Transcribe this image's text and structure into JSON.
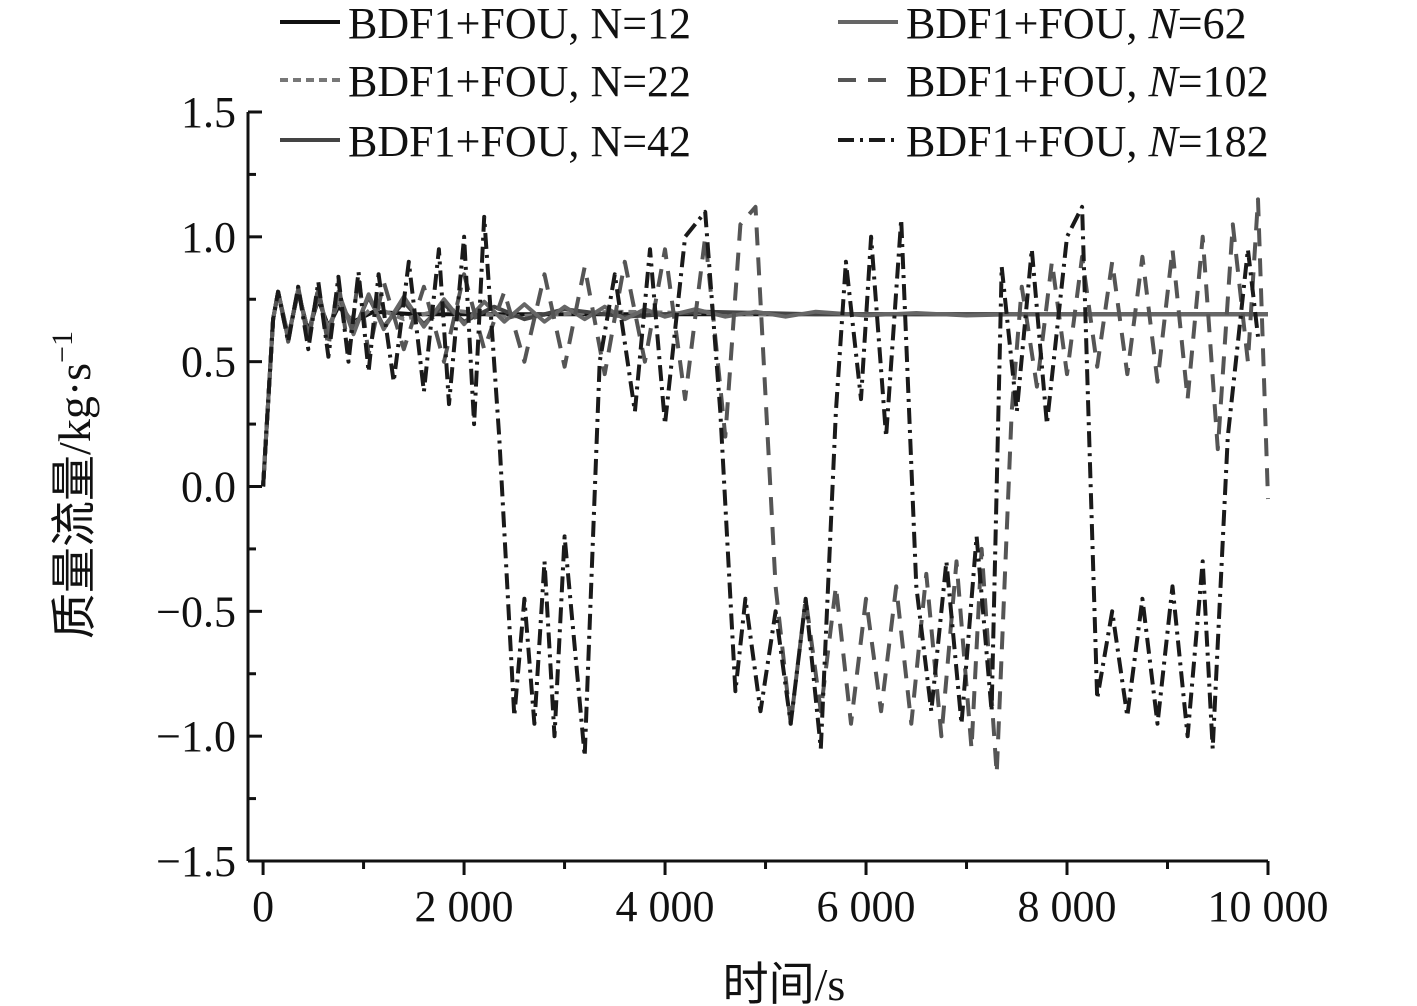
{
  "chart_data": {
    "type": "line",
    "xlabel": "时间/s",
    "ylabel_main": "质量流量/kg·s",
    "ylabel_sup": "−1",
    "xlim": [
      -150,
      10000
    ],
    "ylim": [
      -1.5,
      1.5
    ],
    "x_ticks": [
      {
        "value": 0,
        "label": "0"
      },
      {
        "value": 2000,
        "label": "2 000"
      },
      {
        "value": 4000,
        "label": "4 000"
      },
      {
        "value": 6000,
        "label": "6 000"
      },
      {
        "value": 8000,
        "label": "8 000"
      },
      {
        "value": 10000,
        "label": "10 000"
      }
    ],
    "y_ticks": [
      {
        "value": 1.5,
        "label": "1.5"
      },
      {
        "value": 1.0,
        "label": "1.0"
      },
      {
        "value": 0.5,
        "label": "0.5"
      },
      {
        "value": 0.0,
        "label": "0.0"
      },
      {
        "value": -0.5,
        "label": "−0.5"
      },
      {
        "value": -1.0,
        "label": "−1.0"
      },
      {
        "value": -1.5,
        "label": "−1.5"
      }
    ],
    "legend_position": "top",
    "series": [
      {
        "name_prefix": "BDF1+FOU, ",
        "name_var": "N",
        "name_suffix": "=12",
        "var_italic": false,
        "color": "#111111",
        "dash": "",
        "points": [
          [
            0,
            0
          ],
          [
            100,
            0.67
          ],
          [
            150,
            0.78
          ],
          [
            250,
            0.6
          ],
          [
            350,
            0.78
          ],
          [
            450,
            0.62
          ],
          [
            550,
            0.75
          ],
          [
            650,
            0.64
          ],
          [
            750,
            0.72
          ],
          [
            900,
            0.66
          ],
          [
            1100,
            0.7
          ],
          [
            1500,
            0.69
          ],
          [
            3000,
            0.69
          ],
          [
            10000,
            0.69
          ]
        ]
      },
      {
        "name_prefix": "BDF1+FOU, ",
        "name_var": "N",
        "name_suffix": "=22",
        "var_italic": false,
        "color": "#777777",
        "dash": "8,5",
        "points": [
          [
            0,
            0
          ],
          [
            100,
            0.67
          ],
          [
            150,
            0.78
          ],
          [
            250,
            0.6
          ],
          [
            350,
            0.78
          ],
          [
            450,
            0.62
          ],
          [
            550,
            0.76
          ],
          [
            650,
            0.63
          ],
          [
            750,
            0.74
          ],
          [
            900,
            0.65
          ],
          [
            1100,
            0.72
          ],
          [
            1400,
            0.67
          ],
          [
            1800,
            0.71
          ],
          [
            2400,
            0.68
          ],
          [
            3500,
            0.7
          ],
          [
            5000,
            0.69
          ],
          [
            10000,
            0.69
          ]
        ]
      },
      {
        "name_prefix": "BDF1+FOU, ",
        "name_var": "N",
        "name_suffix": "=42",
        "var_italic": false,
        "color": "#444444",
        "dash": "",
        "points": [
          [
            0,
            0
          ],
          [
            100,
            0.67
          ],
          [
            150,
            0.78
          ],
          [
            250,
            0.59
          ],
          [
            350,
            0.79
          ],
          [
            450,
            0.6
          ],
          [
            550,
            0.78
          ],
          [
            650,
            0.6
          ],
          [
            750,
            0.77
          ],
          [
            900,
            0.62
          ],
          [
            1050,
            0.76
          ],
          [
            1200,
            0.64
          ],
          [
            1400,
            0.74
          ],
          [
            1600,
            0.65
          ],
          [
            1800,
            0.73
          ],
          [
            2000,
            0.66
          ],
          [
            2300,
            0.72
          ],
          [
            2600,
            0.67
          ],
          [
            3000,
            0.71
          ],
          [
            3600,
            0.68
          ],
          [
            4400,
            0.7
          ],
          [
            5500,
            0.69
          ],
          [
            10000,
            0.69
          ]
        ]
      },
      {
        "name_prefix": "BDF1+FOU, ",
        "name_var": "N",
        "name_suffix": "=62",
        "var_italic": true,
        "color": "#666666",
        "dash": "",
        "points": [
          [
            0,
            0
          ],
          [
            100,
            0.67
          ],
          [
            150,
            0.78
          ],
          [
            250,
            0.59
          ],
          [
            350,
            0.79
          ],
          [
            450,
            0.6
          ],
          [
            550,
            0.79
          ],
          [
            650,
            0.6
          ],
          [
            750,
            0.78
          ],
          [
            900,
            0.61
          ],
          [
            1050,
            0.77
          ],
          [
            1200,
            0.63
          ],
          [
            1400,
            0.76
          ],
          [
            1600,
            0.64
          ],
          [
            1800,
            0.75
          ],
          [
            2000,
            0.65
          ],
          [
            2200,
            0.74
          ],
          [
            2400,
            0.66
          ],
          [
            2600,
            0.73
          ],
          [
            2800,
            0.66
          ],
          [
            3000,
            0.72
          ],
          [
            3200,
            0.67
          ],
          [
            3400,
            0.72
          ],
          [
            3600,
            0.67
          ],
          [
            3800,
            0.71
          ],
          [
            4000,
            0.68
          ],
          [
            4300,
            0.71
          ],
          [
            4600,
            0.68
          ],
          [
            4900,
            0.7
          ],
          [
            5200,
            0.68
          ],
          [
            5500,
            0.7
          ],
          [
            6000,
            0.685
          ],
          [
            6500,
            0.695
          ],
          [
            7000,
            0.685
          ],
          [
            7500,
            0.69
          ],
          [
            10000,
            0.69
          ]
        ]
      },
      {
        "name_prefix": "BDF1+FOU, ",
        "name_var": "N",
        "name_suffix": "=102",
        "var_italic": true,
        "color": "#555555",
        "dash": "18,12",
        "points": [
          [
            0,
            0
          ],
          [
            100,
            0.67
          ],
          [
            150,
            0.78
          ],
          [
            250,
            0.58
          ],
          [
            350,
            0.8
          ],
          [
            450,
            0.58
          ],
          [
            550,
            0.8
          ],
          [
            650,
            0.56
          ],
          [
            750,
            0.82
          ],
          [
            850,
            0.54
          ],
          [
            950,
            0.84
          ],
          [
            1050,
            0.53
          ],
          [
            1200,
            0.82
          ],
          [
            1400,
            0.55
          ],
          [
            1600,
            0.8
          ],
          [
            1800,
            0.5
          ],
          [
            2000,
            0.85
          ],
          [
            2200,
            0.55
          ],
          [
            2400,
            0.78
          ],
          [
            2600,
            0.5
          ],
          [
            2800,
            0.85
          ],
          [
            3000,
            0.48
          ],
          [
            3200,
            0.88
          ],
          [
            3400,
            0.45
          ],
          [
            3600,
            0.9
          ],
          [
            3800,
            0.5
          ],
          [
            4000,
            0.95
          ],
          [
            4200,
            0.35
          ],
          [
            4400,
            1.0
          ],
          [
            4600,
            0.2
          ],
          [
            4750,
            1.05
          ],
          [
            4900,
            1.12
          ],
          [
            5100,
            -0.4
          ],
          [
            5250,
            -0.95
          ],
          [
            5400,
            -0.45
          ],
          [
            5550,
            -0.9
          ],
          [
            5700,
            -0.4
          ],
          [
            5850,
            -0.95
          ],
          [
            6000,
            -0.45
          ],
          [
            6150,
            -0.9
          ],
          [
            6300,
            -0.4
          ],
          [
            6450,
            -0.95
          ],
          [
            6600,
            -0.35
          ],
          [
            6750,
            -1.0
          ],
          [
            6900,
            -0.3
          ],
          [
            7050,
            -1.05
          ],
          [
            7150,
            -0.25
          ],
          [
            7300,
            -1.15
          ],
          [
            7450,
            0.3
          ],
          [
            7550,
            0.8
          ],
          [
            7700,
            0.4
          ],
          [
            7850,
            0.9
          ],
          [
            8000,
            0.45
          ],
          [
            8150,
            0.92
          ],
          [
            8300,
            0.48
          ],
          [
            8450,
            0.9
          ],
          [
            8600,
            0.45
          ],
          [
            8750,
            0.92
          ],
          [
            8900,
            0.42
          ],
          [
            9050,
            0.95
          ],
          [
            9200,
            0.35
          ],
          [
            9350,
            1.0
          ],
          [
            9500,
            0.15
          ],
          [
            9650,
            1.05
          ],
          [
            9800,
            0.5
          ],
          [
            9900,
            1.15
          ],
          [
            10000,
            -0.05
          ]
        ]
      },
      {
        "name_prefix": "BDF1+FOU, ",
        "name_var": "N",
        "name_suffix": "=182",
        "var_italic": true,
        "color": "#1a1a1a",
        "dash": "16,6,3,6",
        "points": [
          [
            0,
            0
          ],
          [
            100,
            0.67
          ],
          [
            150,
            0.78
          ],
          [
            250,
            0.58
          ],
          [
            350,
            0.8
          ],
          [
            450,
            0.55
          ],
          [
            550,
            0.82
          ],
          [
            650,
            0.52
          ],
          [
            750,
            0.84
          ],
          [
            850,
            0.5
          ],
          [
            950,
            0.86
          ],
          [
            1050,
            0.46
          ],
          [
            1150,
            0.85
          ],
          [
            1300,
            0.42
          ],
          [
            1450,
            0.9
          ],
          [
            1600,
            0.38
          ],
          [
            1750,
            0.95
          ],
          [
            1850,
            0.33
          ],
          [
            2000,
            1.0
          ],
          [
            2100,
            0.25
          ],
          [
            2200,
            1.08
          ],
          [
            2350,
            0.2
          ],
          [
            2500,
            -0.92
          ],
          [
            2600,
            -0.45
          ],
          [
            2700,
            -0.95
          ],
          [
            2800,
            -0.3
          ],
          [
            2900,
            -1.0
          ],
          [
            3000,
            -0.2
          ],
          [
            3200,
            -1.08
          ],
          [
            3350,
            0.5
          ],
          [
            3500,
            0.85
          ],
          [
            3700,
            0.3
          ],
          [
            3850,
            0.95
          ],
          [
            4000,
            0.25
          ],
          [
            4200,
            1.0
          ],
          [
            4400,
            1.1
          ],
          [
            4550,
            0.3
          ],
          [
            4700,
            -0.82
          ],
          [
            4800,
            -0.45
          ],
          [
            4950,
            -0.9
          ],
          [
            5100,
            -0.5
          ],
          [
            5250,
            -0.95
          ],
          [
            5400,
            -0.45
          ],
          [
            5550,
            -1.05
          ],
          [
            5700,
            0.3
          ],
          [
            5800,
            0.9
          ],
          [
            5950,
            0.35
          ],
          [
            6050,
            1.0
          ],
          [
            6200,
            0.2
          ],
          [
            6350,
            1.07
          ],
          [
            6500,
            -0.4
          ],
          [
            6650,
            -0.9
          ],
          [
            6800,
            -0.3
          ],
          [
            6950,
            -0.95
          ],
          [
            7100,
            -0.2
          ],
          [
            7250,
            -0.9
          ],
          [
            7350,
            0.88
          ],
          [
            7500,
            0.3
          ],
          [
            7650,
            0.95
          ],
          [
            7800,
            0.25
          ],
          [
            8000,
            1.0
          ],
          [
            8150,
            1.12
          ],
          [
            8300,
            -0.85
          ],
          [
            8450,
            -0.5
          ],
          [
            8600,
            -0.92
          ],
          [
            8750,
            -0.45
          ],
          [
            8900,
            -0.95
          ],
          [
            9050,
            -0.4
          ],
          [
            9200,
            -1.0
          ],
          [
            9350,
            -0.3
          ],
          [
            9450,
            -1.05
          ],
          [
            9600,
            0.2
          ],
          [
            9800,
            0.95
          ],
          [
            9900,
            0.6
          ]
        ]
      }
    ]
  }
}
